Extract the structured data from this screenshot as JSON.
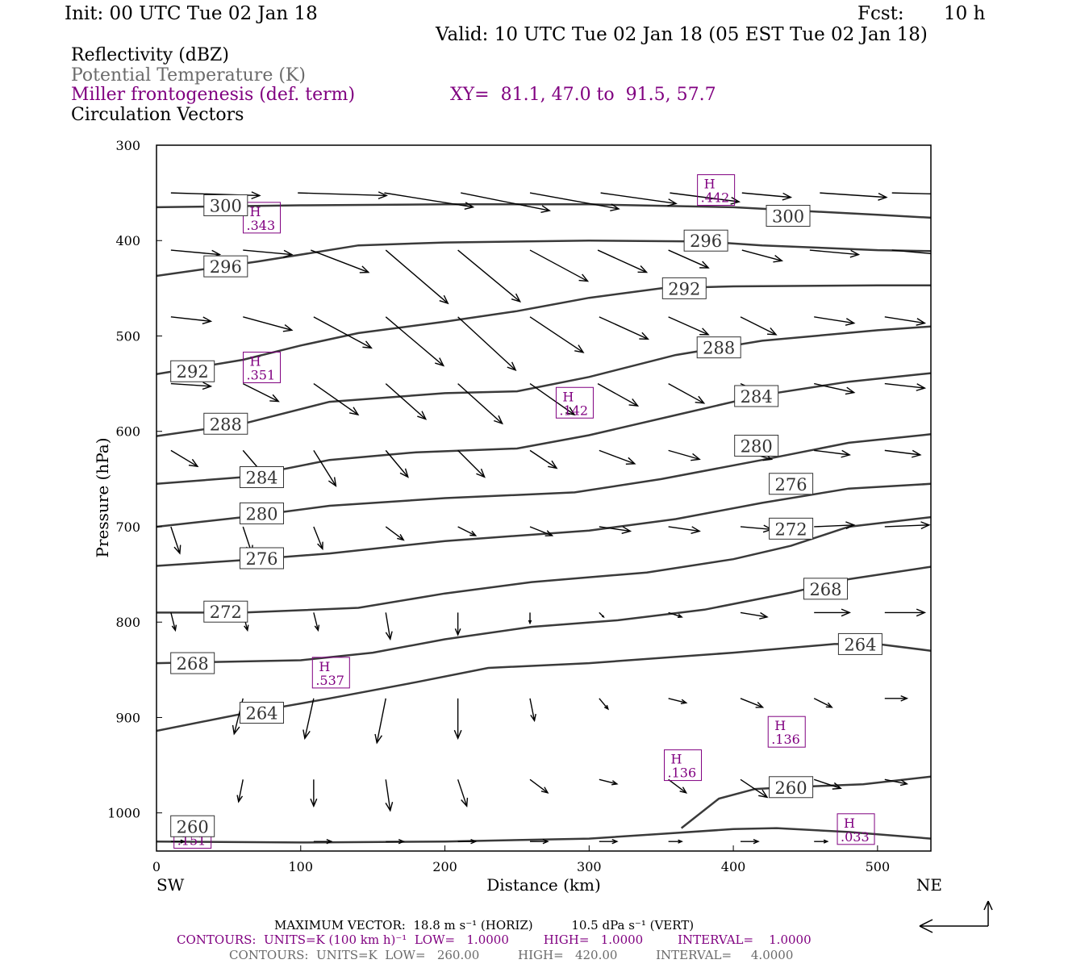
{
  "header": {
    "init": "Init: 00 UTC Tue 02 Jan 18",
    "fcst_label": "Fcst:",
    "fcst_value": "10 h",
    "valid": "Valid: 10 UTC Tue 02 Jan 18 (05 EST Tue 02 Jan 18)"
  },
  "legend": {
    "reflectivity": "Reflectivity (dBZ)",
    "theta": "Potential Temperature (K)",
    "frontogenesis": "Miller frontogenesis (def. term)",
    "xy": "XY=  81.1, 47.0 to  91.5, 57.7",
    "vectors": "Circulation Vectors"
  },
  "footer": {
    "vector_max": "MAXIMUM VECTOR:  18.8 m s⁻¹ (HORIZ)          10.5 dPa s⁻¹ (VERT)",
    "contours_front": "CONTOURS:  UNITS=K (100 km h)⁻¹  LOW=   1.0000         HIGH=   1.0000         INTERVAL=    1.0000",
    "contours_theta": "CONTOURS:  UNITS=K  LOW=   260.00          HIGH=   420.00          INTERVAL=     4.0000"
  },
  "colors": {
    "theta": "#3a3a3a",
    "front": "#800080",
    "vector": "#000000"
  },
  "chart_data": {
    "type": "line",
    "xlabel": "Distance (km)",
    "ylabel": "Pressure (hPa)",
    "xlim": [
      0,
      537
    ],
    "ylim": [
      1040,
      300
    ],
    "x_ticks": [
      0,
      100,
      200,
      300,
      400,
      500
    ],
    "y_ticks": [
      300,
      400,
      500,
      600,
      700,
      800,
      900,
      1000
    ],
    "x_end_labels": {
      "left": "SW",
      "right": "NE"
    },
    "theta_contours": [
      {
        "level": 300,
        "points": [
          [
            0,
            365
          ],
          [
            100,
            363
          ],
          [
            200,
            362
          ],
          [
            300,
            362
          ],
          [
            400,
            365
          ],
          [
            500,
            373
          ],
          [
            537,
            376
          ]
        ],
        "labels": [
          [
            48,
            363
          ],
          [
            438,
            374
          ]
        ]
      },
      {
        "level": 296,
        "points": [
          [
            0,
            437
          ],
          [
            70,
            422
          ],
          [
            140,
            405
          ],
          [
            200,
            402
          ],
          [
            300,
            400
          ],
          [
            380,
            401
          ],
          [
            420,
            405
          ],
          [
            500,
            410
          ],
          [
            537,
            411
          ]
        ],
        "labels": [
          [
            48,
            427
          ],
          [
            381,
            400
          ]
        ]
      },
      {
        "level": 292,
        "points": [
          [
            0,
            540
          ],
          [
            60,
            525
          ],
          [
            100,
            510
          ],
          [
            140,
            497
          ],
          [
            200,
            485
          ],
          [
            250,
            474
          ],
          [
            300,
            460
          ],
          [
            350,
            450
          ],
          [
            400,
            448
          ],
          [
            500,
            447
          ],
          [
            537,
            447
          ]
        ],
        "labels": [
          [
            25,
            537
          ],
          [
            366,
            450
          ]
        ]
      },
      {
        "level": 288,
        "points": [
          [
            0,
            605
          ],
          [
            60,
            592
          ],
          [
            120,
            569
          ],
          [
            200,
            560
          ],
          [
            250,
            558
          ],
          [
            300,
            543
          ],
          [
            360,
            520
          ],
          [
            420,
            505
          ],
          [
            500,
            494
          ],
          [
            537,
            490
          ]
        ],
        "labels": [
          [
            48,
            592
          ],
          [
            390,
            512
          ]
        ]
      },
      {
        "level": 284,
        "points": [
          [
            0,
            655
          ],
          [
            60,
            648
          ],
          [
            120,
            630
          ],
          [
            180,
            622
          ],
          [
            250,
            618
          ],
          [
            300,
            604
          ],
          [
            360,
            583
          ],
          [
            420,
            562
          ],
          [
            480,
            548
          ],
          [
            537,
            539
          ]
        ],
        "labels": [
          [
            73,
            648
          ],
          [
            416,
            563
          ]
        ]
      },
      {
        "level": 280,
        "points": [
          [
            0,
            700
          ],
          [
            60,
            690
          ],
          [
            120,
            678
          ],
          [
            200,
            670
          ],
          [
            290,
            664
          ],
          [
            350,
            650
          ],
          [
            420,
            630
          ],
          [
            480,
            612
          ],
          [
            537,
            603
          ]
        ],
        "labels": [
          [
            73,
            686
          ],
          [
            416,
            615
          ]
        ]
      },
      {
        "level": 276,
        "points": [
          [
            0,
            741
          ],
          [
            60,
            735
          ],
          [
            120,
            728
          ],
          [
            200,
            715
          ],
          [
            300,
            704
          ],
          [
            360,
            692
          ],
          [
            420,
            675
          ],
          [
            480,
            660
          ],
          [
            537,
            655
          ]
        ],
        "labels": [
          [
            73,
            733
          ],
          [
            440,
            655
          ]
        ]
      },
      {
        "level": 272,
        "points": [
          [
            0,
            790
          ],
          [
            60,
            790
          ],
          [
            140,
            785
          ],
          [
            200,
            770
          ],
          [
            260,
            758
          ],
          [
            340,
            748
          ],
          [
            400,
            734
          ],
          [
            440,
            720
          ],
          [
            480,
            700
          ],
          [
            537,
            690
          ]
        ],
        "labels": [
          [
            48,
            789
          ],
          [
            440,
            702
          ]
        ]
      },
      {
        "level": 268,
        "points": [
          [
            0,
            843
          ],
          [
            100,
            840
          ],
          [
            150,
            832
          ],
          [
            200,
            818
          ],
          [
            260,
            805
          ],
          [
            320,
            798
          ],
          [
            380,
            787
          ],
          [
            440,
            769
          ],
          [
            480,
            755
          ],
          [
            537,
            742
          ]
        ],
        "labels": [
          [
            25,
            843
          ],
          [
            464,
            765
          ]
        ]
      },
      {
        "level": 264,
        "points": [
          [
            0,
            914
          ],
          [
            60,
            896
          ],
          [
            120,
            880
          ],
          [
            180,
            863
          ],
          [
            230,
            848
          ],
          [
            300,
            843
          ],
          [
            400,
            832
          ],
          [
            470,
            823
          ],
          [
            500,
            823
          ],
          [
            537,
            830
          ]
        ],
        "labels": [
          [
            73,
            895
          ],
          [
            488,
            823
          ]
        ]
      },
      {
        "level": 260,
        "points": [
          [
            0,
            1030
          ],
          [
            100,
            1031
          ],
          [
            200,
            1030
          ],
          [
            300,
            1027
          ],
          [
            350,
            1022
          ],
          [
            400,
            1017
          ],
          [
            430,
            1016
          ],
          [
            480,
            1020
          ],
          [
            537,
            1027
          ]
        ],
        "labels": [
          [
            25,
            1014
          ]
        ]
      },
      {
        "level": 260,
        "points": [
          [
            364,
            1016
          ],
          [
            390,
            985
          ],
          [
            415,
            975
          ],
          [
            440,
            973
          ],
          [
            490,
            970
          ],
          [
            537,
            962
          ]
        ],
        "labels": [
          [
            440,
            973
          ]
        ]
      }
    ],
    "frontogenesis_highs": [
      {
        "label": "H",
        "value": ".343",
        "x": 73,
        "y": 376
      },
      {
        "label": "H",
        "value": ".442",
        "x": 388,
        "y": 347
      },
      {
        "label": "H",
        "value": ".351",
        "x": 73,
        "y": 533
      },
      {
        "label": "H",
        "value": ".142",
        "x": 290,
        "y": 570
      },
      {
        "label": "H",
        "value": ".537",
        "x": 121,
        "y": 853
      },
      {
        "label": "H",
        "value": ".136",
        "x": 437,
        "y": 915
      },
      {
        "label": "H",
        "value": ".136",
        "x": 365,
        "y": 950
      },
      {
        "label": "H",
        "value": ".033",
        "x": 485,
        "y": 1017
      },
      {
        "label": "H",
        "value": ".151",
        "x": 25,
        "y": 1021
      }
    ],
    "vector_rows": [
      {
        "p": 350,
        "vectors": [
          [
            10,
            1.0,
            0.03
          ],
          [
            98,
            1.0,
            0.03
          ],
          [
            158,
            1.0,
            0.16
          ],
          [
            211,
            1.0,
            0.2
          ],
          [
            259,
            1.0,
            0.18
          ],
          [
            308,
            0.85,
            0.12
          ],
          [
            356,
            0.78,
            0.1
          ],
          [
            406,
            0.55,
            0.05
          ],
          [
            460,
            0.75,
            0.05
          ],
          [
            510,
            0.78,
            0.02
          ]
        ]
      },
      {
        "p": 410,
        "vectors": [
          [
            10,
            0.55,
            0.05
          ],
          [
            60,
            0.55,
            0.05
          ],
          [
            107,
            0.65,
            0.25
          ],
          [
            159,
            0.7,
            0.6
          ],
          [
            209,
            0.7,
            0.58
          ],
          [
            259,
            0.65,
            0.35
          ],
          [
            306,
            0.55,
            0.25
          ],
          [
            355,
            0.45,
            0.2
          ],
          [
            406,
            0.45,
            0.12
          ],
          [
            453,
            0.55,
            0.05
          ],
          [
            510,
            0.55,
            0.05
          ]
        ]
      },
      {
        "p": 480,
        "vectors": [
          [
            10,
            0.45,
            0.05
          ],
          [
            60,
            0.55,
            0.15
          ],
          [
            109,
            0.65,
            0.35
          ],
          [
            159,
            0.65,
            0.55
          ],
          [
            209,
            0.65,
            0.6
          ],
          [
            259,
            0.6,
            0.4
          ],
          [
            307,
            0.55,
            0.25
          ],
          [
            355,
            0.45,
            0.2
          ],
          [
            405,
            0.4,
            0.2
          ],
          [
            456,
            0.45,
            0.07
          ],
          [
            505,
            0.45,
            0.07
          ]
        ]
      },
      {
        "p": 550,
        "vectors": [
          [
            10,
            0.45,
            0.03
          ],
          [
            60,
            0.4,
            0.2
          ],
          [
            109,
            0.5,
            0.35
          ],
          [
            159,
            0.45,
            0.4
          ],
          [
            209,
            0.5,
            0.45
          ],
          [
            259,
            0.5,
            0.35
          ],
          [
            306,
            0.45,
            0.25
          ],
          [
            355,
            0.4,
            0.22
          ],
          [
            405,
            0.35,
            0.15
          ],
          [
            456,
            0.45,
            0.1
          ],
          [
            505,
            0.45,
            0.05
          ]
        ]
      },
      {
        "p": 620,
        "vectors": [
          [
            10,
            0.3,
            0.18
          ],
          [
            60,
            0.3,
            0.35
          ],
          [
            109,
            0.25,
            0.4
          ],
          [
            159,
            0.25,
            0.3
          ],
          [
            209,
            0.3,
            0.3
          ],
          [
            259,
            0.3,
            0.2
          ],
          [
            307,
            0.4,
            0.15
          ],
          [
            355,
            0.35,
            0.1
          ],
          [
            405,
            0.35,
            0.1
          ],
          [
            456,
            0.4,
            0.05
          ],
          [
            505,
            0.4,
            0.05
          ]
        ]
      },
      {
        "p": 700,
        "vectors": [
          [
            10,
            0.1,
            0.3
          ],
          [
            60,
            0.1,
            0.3
          ],
          [
            109,
            0.1,
            0.25
          ],
          [
            159,
            0.2,
            0.15
          ],
          [
            209,
            0.2,
            0.1
          ],
          [
            259,
            0.25,
            0.1
          ],
          [
            307,
            0.35,
            0.05
          ],
          [
            355,
            0.35,
            0.05
          ],
          [
            405,
            0.35,
            0.03
          ],
          [
            456,
            0.45,
            -0.02
          ],
          [
            505,
            0.5,
            -0.02
          ]
        ]
      },
      {
        "p": 790,
        "vectors": [
          [
            10,
            0.05,
            0.2
          ],
          [
            60,
            0.05,
            0.2
          ],
          [
            109,
            0.05,
            0.2
          ],
          [
            159,
            0.05,
            0.3
          ],
          [
            209,
            0.0,
            0.25
          ],
          [
            259,
            0.0,
            0.12
          ],
          [
            307,
            0.05,
            0.05
          ],
          [
            355,
            0.15,
            0.05
          ],
          [
            405,
            0.3,
            0.05
          ],
          [
            456,
            0.4,
            0.0
          ],
          [
            505,
            0.45,
            0.0
          ]
        ]
      },
      {
        "p": 880,
        "vectors": [
          [
            60,
            -0.1,
            0.4
          ],
          [
            109,
            -0.1,
            0.45
          ],
          [
            159,
            -0.1,
            0.5
          ],
          [
            209,
            0.0,
            0.45
          ],
          [
            259,
            0.05,
            0.25
          ],
          [
            307,
            0.1,
            0.12
          ],
          [
            355,
            0.2,
            0.05
          ],
          [
            405,
            0.25,
            0.1
          ],
          [
            456,
            0.2,
            0.1
          ],
          [
            505,
            0.25,
            0.0
          ]
        ]
      },
      {
        "p": 965,
        "vectors": [
          [
            60,
            -0.05,
            0.25
          ],
          [
            109,
            0.0,
            0.3
          ],
          [
            159,
            0.05,
            0.35
          ],
          [
            209,
            0.1,
            0.3
          ],
          [
            259,
            0.2,
            0.15
          ],
          [
            307,
            0.2,
            0.05
          ],
          [
            355,
            0.2,
            0.15
          ],
          [
            405,
            0.3,
            0.2
          ],
          [
            456,
            0.3,
            0.1
          ],
          [
            505,
            0.25,
            0.05
          ]
        ]
      },
      {
        "p": 1030,
        "vectors": [
          [
            10,
            0.15,
            0.0
          ],
          [
            109,
            0.2,
            0.0
          ],
          [
            159,
            0.2,
            0.0
          ],
          [
            209,
            0.2,
            0.0
          ],
          [
            259,
            0.2,
            0.0
          ],
          [
            307,
            0.2,
            0.0
          ],
          [
            355,
            0.15,
            0.0
          ],
          [
            405,
            0.2,
            0.0
          ],
          [
            456,
            0.15,
            0.0
          ]
        ]
      }
    ]
  }
}
